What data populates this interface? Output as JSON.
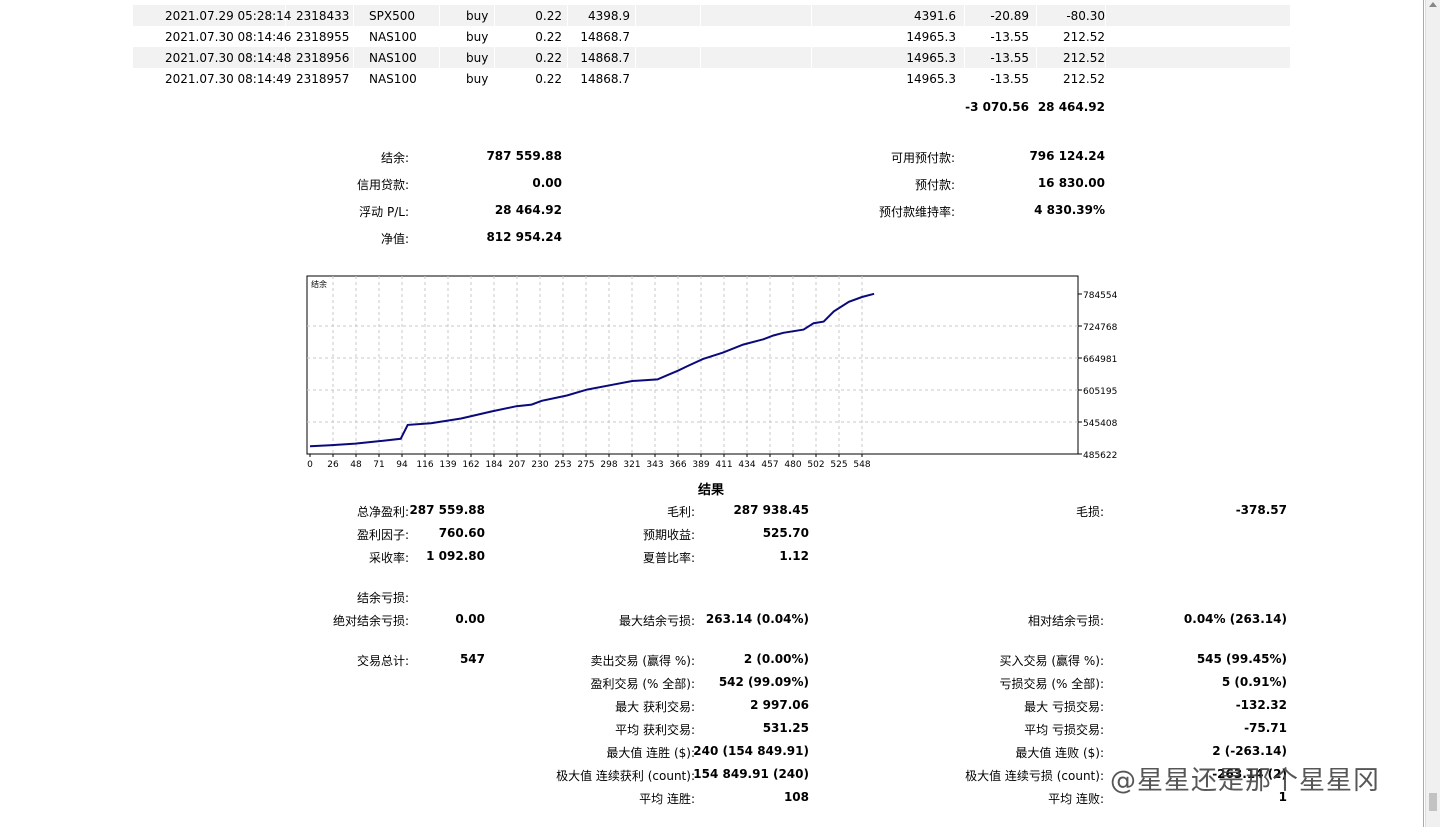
{
  "trades": [
    {
      "time": "2021.07.29 05:28:14",
      "ticket": "2318433",
      "symbol": "SPX500",
      "type": "buy",
      "volume": "0.22",
      "price": "4398.9",
      "close": "4391.6",
      "swap": "-20.89",
      "profit": "-80.30"
    },
    {
      "time": "2021.07.30 08:14:46",
      "ticket": "2318955",
      "symbol": "NAS100",
      "type": "buy",
      "volume": "0.22",
      "price": "14868.7",
      "close": "14965.3",
      "swap": "-13.55",
      "profit": "212.52"
    },
    {
      "time": "2021.07.30 08:14:48",
      "ticket": "2318956",
      "symbol": "NAS100",
      "type": "buy",
      "volume": "0.22",
      "price": "14868.7",
      "close": "14965.3",
      "swap": "-13.55",
      "profit": "212.52"
    },
    {
      "time": "2021.07.30 08:14:49",
      "ticket": "2318957",
      "symbol": "NAS100",
      "type": "buy",
      "volume": "0.22",
      "price": "14868.7",
      "close": "14965.3",
      "swap": "-13.55",
      "profit": "212.52"
    }
  ],
  "totals": {
    "swap": "-3 070.56",
    "profit": "28 464.92"
  },
  "account": {
    "balance_label": "结余:",
    "balance": "787 559.88",
    "credit_label": "信用贷款:",
    "credit": "0.00",
    "floating_label": "浮动 P/L:",
    "floating": "28 464.92",
    "equity_label": "净值:",
    "equity": "812 954.24",
    "free_margin_label": "可用预付款:",
    "free_margin": "796 124.24",
    "margin_label": "预付款:",
    "margin": "16 830.00",
    "margin_level_label": "预付款维持率:",
    "margin_level": "4 830.39%"
  },
  "chart_data": {
    "type": "line",
    "title": "结余",
    "x_ticks": [
      "0",
      "26",
      "48",
      "71",
      "94",
      "116",
      "139",
      "162",
      "184",
      "207",
      "230",
      "253",
      "275",
      "298",
      "321",
      "343",
      "366",
      "389",
      "411",
      "434",
      "457",
      "480",
      "502",
      "525",
      "548"
    ],
    "y_ticks": [
      "784554",
      "724768",
      "664981",
      "605195",
      "545408",
      "485622"
    ],
    "ylim": [
      485622,
      800000
    ],
    "xlim": [
      0,
      560
    ],
    "grid": true,
    "series": [
      {
        "x": [
          0,
          20,
          45,
          70,
          90,
          97,
          120,
          150,
          180,
          205,
          220,
          230,
          255,
          275,
          300,
          320,
          345,
          355,
          365,
          375,
          390,
          410,
          430,
          450,
          460,
          470,
          490,
          500,
          510,
          520,
          535,
          548,
          560
        ],
        "y": [
          500000,
          502000,
          505000,
          510000,
          514000,
          540000,
          543000,
          552000,
          565000,
          575000,
          578000,
          585000,
          595000,
          606000,
          615000,
          622000,
          625000,
          633000,
          641000,
          650000,
          663000,
          675000,
          690000,
          700000,
          707000,
          712000,
          718000,
          730000,
          733000,
          752000,
          770000,
          779000,
          785000
        ]
      }
    ]
  },
  "results": {
    "heading": "结果",
    "net_profit_label": "总净盈利:",
    "net_profit": "287 559.88",
    "gross_profit_label": "毛利:",
    "gross_profit": "287 938.45",
    "gross_loss_label": "毛损:",
    "gross_loss": "-378.57",
    "profit_factor_label": "盈利因子:",
    "profit_factor": "760.60",
    "expected_payoff_label": "预期收益:",
    "expected_payoff": "525.70",
    "recovery_label": "采收率:",
    "recovery": "1 092.80",
    "sharpe_label": "夏普比率:",
    "sharpe": "1.12",
    "drawdown_label": "结余亏损:",
    "abs_dd_label": "绝对结余亏损:",
    "abs_dd": "0.00",
    "max_dd_label": "最大结余亏损:",
    "max_dd": "263.14 (0.04%)",
    "rel_dd_label": "相对结余亏损:",
    "rel_dd": "0.04% (263.14)",
    "total_trades_label": "交易总计:",
    "total_trades": "547",
    "short_label": "卖出交易 (赢得 %):",
    "short": "2 (0.00%)",
    "long_label": "买入交易 (赢得 %):",
    "long": "545 (99.45%)",
    "profit_trades_label": "盈利交易 (% 全部):",
    "profit_trades": "542 (99.09%)",
    "loss_trades_label": "亏损交易 (% 全部):",
    "loss_trades": "5 (0.91%)",
    "largest_profit_label": "最大 获利交易:",
    "largest_profit": "2 997.06",
    "largest_loss_label": "最大 亏损交易:",
    "largest_loss": "-132.32",
    "avg_profit_label": "平均 获利交易:",
    "avg_profit": "531.25",
    "avg_loss_label": "平均 亏损交易:",
    "avg_loss": "-75.71",
    "max_wins_label": "最大值 连胜 ($):",
    "max_wins": "240 (154 849.91)",
    "max_losses_label": "最大值 连败 ($):",
    "max_losses": "2 (-263.14)",
    "max_profit_count_label": "极大值 连续获利 (count):",
    "max_profit_count": "154 849.91 (240)",
    "max_loss_count_label": "极大值 连续亏损 (count):",
    "max_loss_count": "-263.14 (2)",
    "avg_wins_label": "平均 连胜:",
    "avg_wins": "108",
    "avg_losses_label": "平均 连败:",
    "avg_losses": "1"
  },
  "watermark": "@星星还是那个星星冈"
}
